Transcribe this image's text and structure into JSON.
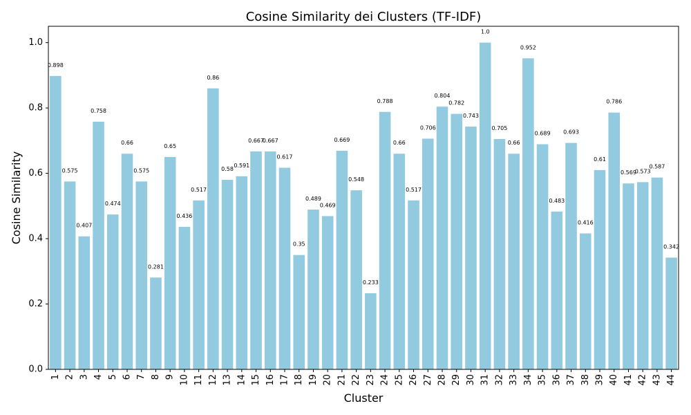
{
  "chart_data": {
    "type": "bar",
    "title": "Cosine Similarity dei Clusters (TF-IDF)",
    "xlabel": "Cluster",
    "ylabel": "Cosine Similarity",
    "ylim": [
      0,
      1.05
    ],
    "yticks": [
      0.0,
      0.2,
      0.4,
      0.6,
      0.8,
      1.0
    ],
    "ytick_labels": [
      "0.0",
      "0.2",
      "0.4",
      "0.6",
      "0.8",
      "1.0"
    ],
    "grid": false,
    "bar_color": "#92cadf",
    "categories": [
      "1",
      "2",
      "3",
      "4",
      "5",
      "6",
      "7",
      "8",
      "9",
      "10",
      "11",
      "12",
      "13",
      "14",
      "15",
      "16",
      "17",
      "18",
      "19",
      "20",
      "21",
      "22",
      "23",
      "24",
      "25",
      "26",
      "27",
      "28",
      "29",
      "30",
      "31",
      "32",
      "33",
      "34",
      "35",
      "36",
      "37",
      "38",
      "39",
      "40",
      "41",
      "42",
      "43",
      "44"
    ],
    "values": [
      0.898,
      0.575,
      0.407,
      0.758,
      0.474,
      0.66,
      0.575,
      0.281,
      0.65,
      0.436,
      0.517,
      0.86,
      0.58,
      0.591,
      0.667,
      0.667,
      0.617,
      0.35,
      0.489,
      0.469,
      0.669,
      0.548,
      0.233,
      0.788,
      0.66,
      0.517,
      0.706,
      0.804,
      0.782,
      0.743,
      1.0,
      0.705,
      0.66,
      0.952,
      0.689,
      0.483,
      0.693,
      0.416,
      0.61,
      0.786,
      0.569,
      0.573,
      0.587,
      0.342
    ],
    "value_labels": [
      "0.898",
      "0.575",
      "0.407",
      "0.758",
      "0.474",
      "0.66",
      "0.575",
      "0.281",
      "0.65",
      "0.436",
      "0.517",
      "0.86",
      "0.58",
      "0.591",
      "0.667",
      "0.667",
      "0.617",
      "0.35",
      "0.489",
      "0.469",
      "0.669",
      "0.548",
      "0.233",
      "0.788",
      "0.66",
      "0.517",
      "0.706",
      "0.804",
      "0.782",
      "0.743",
      "1.0",
      "0.705",
      "0.66",
      "0.952",
      "0.689",
      "0.483",
      "0.693",
      "0.416",
      "0.61",
      "0.786",
      "0.569",
      "0.573",
      "0.587",
      "0.342"
    ]
  }
}
